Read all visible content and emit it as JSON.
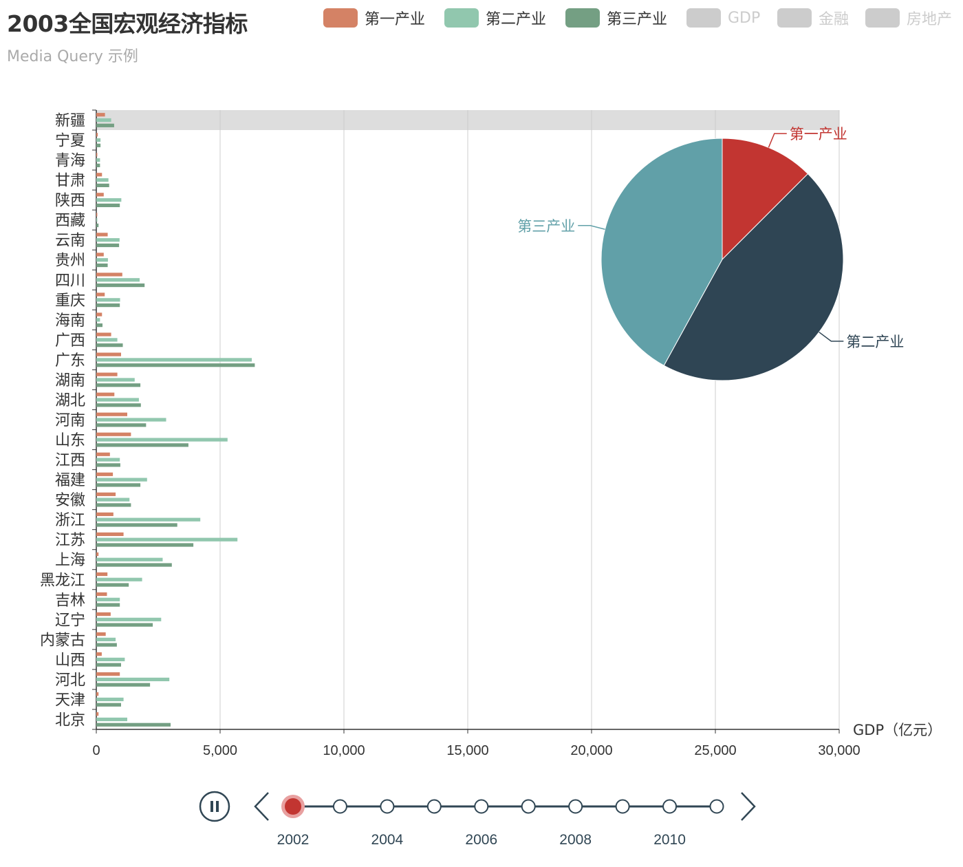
{
  "title": "2003全国宏观经济指标",
  "subtitle": "Media Query 示例",
  "legend": [
    {
      "name": "第一产业",
      "color": "#d48265",
      "active": true
    },
    {
      "name": "第二产业",
      "color": "#91c7ae",
      "active": true
    },
    {
      "name": "第三产业",
      "color": "#749f83",
      "active": true
    },
    {
      "name": "GDP",
      "color": "#cccccc",
      "active": false
    },
    {
      "name": "金融",
      "color": "#cccccc",
      "active": false
    },
    {
      "name": "房地产",
      "color": "#cccccc",
      "active": false
    }
  ],
  "chart_data": [
    {
      "type": "bar",
      "orientation": "horizontal",
      "xlabel": "GDP（亿元）",
      "xlim": [
        0,
        30000
      ],
      "xticks": [
        "0",
        "5,000",
        "10,000",
        "15,000",
        "20,000",
        "25,000",
        "30,000"
      ],
      "grid": true,
      "highlighted_category": "新疆",
      "categories": [
        "北京",
        "天津",
        "河北",
        "山西",
        "内蒙古",
        "辽宁",
        "吉林",
        "黑龙江",
        "上海",
        "江苏",
        "浙江",
        "安徽",
        "福建",
        "江西",
        "山东",
        "河南",
        "湖北",
        "湖南",
        "广东",
        "广西",
        "海南",
        "重庆",
        "四川",
        "贵州",
        "云南",
        "西藏",
        "陕西",
        "甘肃",
        "青海",
        "宁夏",
        "新疆"
      ],
      "series": [
        {
          "name": "第一产业",
          "color": "#d48265",
          "values": [
            90,
            90,
            950,
            220,
            380,
            580,
            430,
            450,
            90,
            1100,
            690,
            780,
            670,
            550,
            1400,
            1250,
            730,
            850,
            1000,
            600,
            230,
            340,
            1050,
            300,
            460,
            40,
            300,
            230,
            40,
            60,
            350
          ]
        },
        {
          "name": "第二产业",
          "color": "#91c7ae",
          "values": [
            1250,
            1100,
            2950,
            1150,
            780,
            2620,
            950,
            1850,
            2680,
            5700,
            4200,
            1340,
            2050,
            950,
            5300,
            2820,
            1720,
            1550,
            6280,
            850,
            150,
            960,
            1750,
            470,
            940,
            40,
            1010,
            490,
            150,
            170,
            600
          ]
        },
        {
          "name": "第三产业",
          "color": "#749f83",
          "values": [
            3000,
            1000,
            2170,
            1000,
            830,
            2280,
            950,
            1310,
            3050,
            3920,
            3270,
            1400,
            1780,
            970,
            3720,
            2010,
            1800,
            1780,
            6400,
            1070,
            250,
            950,
            1950,
            460,
            920,
            90,
            950,
            520,
            150,
            170,
            720
          ]
        }
      ]
    },
    {
      "type": "pie",
      "labels": [
        "第一产业",
        "第二产业",
        "第三产业"
      ],
      "colors": [
        "#c23531",
        "#2f4554",
        "#61a0a8"
      ],
      "values": [
        12.5,
        45.5,
        42.0
      ]
    }
  ],
  "timeline": {
    "years": [
      "2002",
      "2003",
      "2004",
      "2005",
      "2006",
      "2007",
      "2008",
      "2009",
      "2010",
      "2011"
    ],
    "labels": [
      "2002",
      "2004",
      "2006",
      "2008",
      "2010"
    ],
    "current_index": 0,
    "playing": true
  }
}
